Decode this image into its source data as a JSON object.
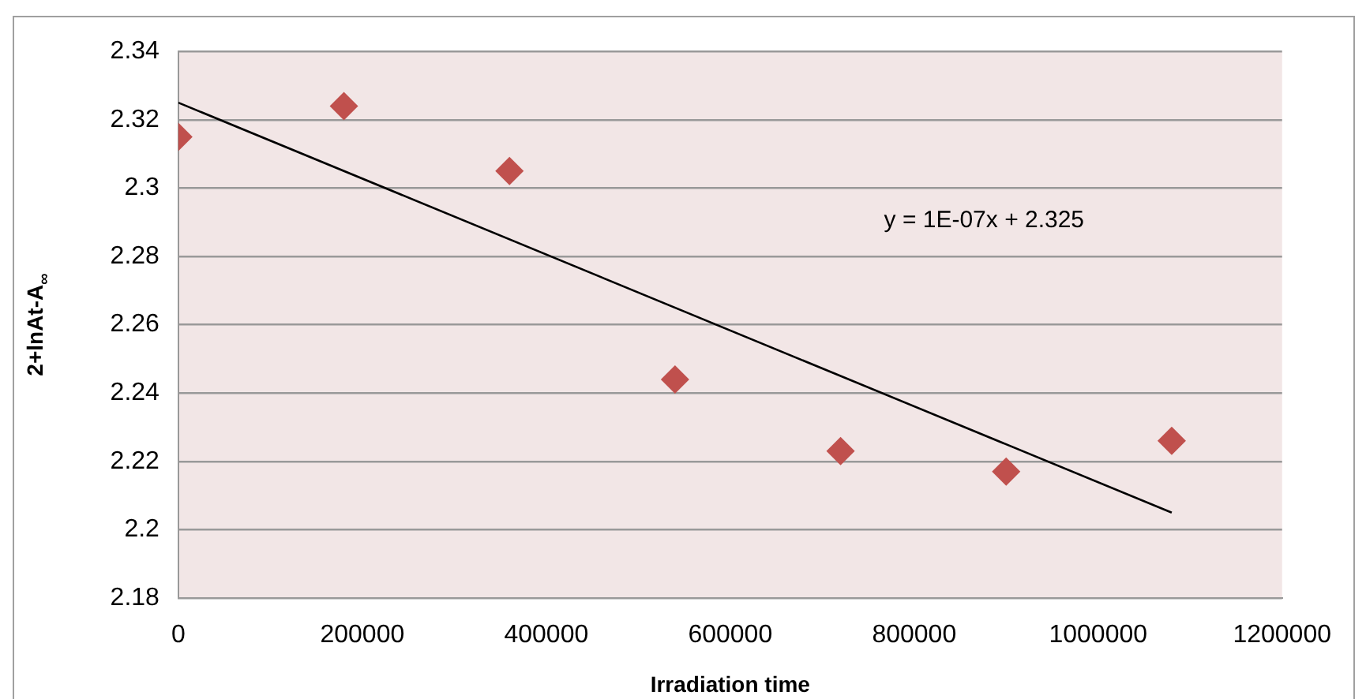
{
  "chart_data": {
    "type": "scatter",
    "xlabel": "Irradiation time",
    "ylabel": "2+lnAt-A$_{∞}$",
    "x": [
      0,
      180000,
      360000,
      540000,
      720000,
      900000,
      1080000
    ],
    "series": [
      {
        "color": "#c0504d",
        "values": [
          2.315,
          2.324,
          2.305,
          2.244,
          2.223,
          2.217,
          2.226
        ],
        "marker": "diamond"
      },
      {
        "type": "line",
        "color": "#000000",
        "x": [
          0,
          1080000
        ],
        "values": [
          2.325,
          2.205
        ],
        "marker": "none"
      }
    ],
    "xlim": [
      0,
      1200000
    ],
    "xticks": [
      0,
      200000,
      400000,
      600000,
      800000,
      1000000,
      1200000
    ],
    "ylim": [
      2.18,
      2.34
    ],
    "yticks": [
      2.18,
      2.2,
      2.22,
      2.24,
      2.26,
      2.28,
      2.3,
      2.32,
      2.34
    ],
    "grid": "y",
    "legend": false,
    "annotations": [
      "y = 1E-07x + 2.325"
    ]
  }
}
